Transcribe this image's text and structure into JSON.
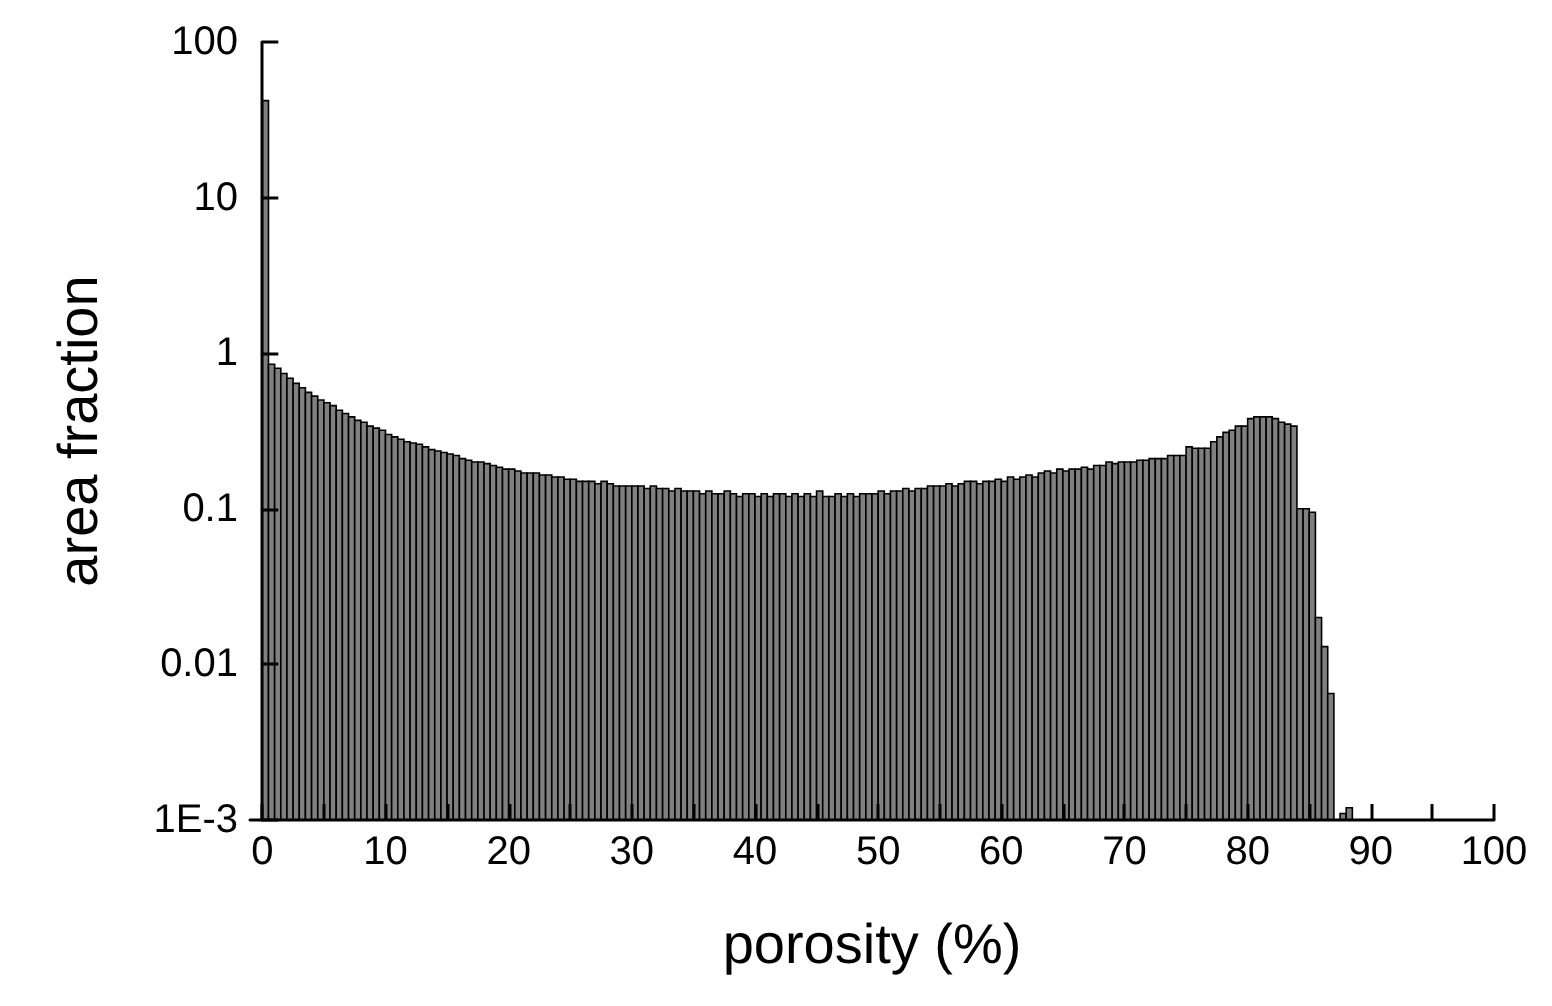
{
  "chart_data": {
    "type": "histogram",
    "xlabel": "porosity (%)",
    "ylabel": "area fraction",
    "log": "y",
    "grid": false,
    "color": "#808080",
    "bins": [
      0,
      0.5,
      1,
      1.5,
      2,
      2.5,
      3,
      3.5,
      4,
      4.5,
      5,
      5.5,
      6,
      6.5,
      7,
      7.5,
      8,
      8.5,
      9,
      9.5,
      10,
      10.5,
      11,
      11.5,
      12,
      12.5,
      13,
      13.5,
      14,
      14.5,
      15,
      15.5,
      16,
      16.5,
      17,
      17.5,
      18,
      18.5,
      19,
      19.5,
      20,
      20.5,
      21,
      21.5,
      22,
      22.5,
      23,
      23.5,
      24,
      24.5,
      25,
      25.5,
      26,
      26.5,
      27,
      27.5,
      28,
      28.5,
      29,
      29.5,
      30,
      30.5,
      31,
      31.5,
      32,
      32.5,
      33,
      33.5,
      34,
      34.5,
      35,
      35.5,
      36,
      36.5,
      37,
      37.5,
      38,
      38.5,
      39,
      39.5,
      40,
      40.5,
      41,
      41.5,
      42,
      42.5,
      43,
      43.5,
      44,
      44.5,
      45,
      45.5,
      46,
      46.5,
      47,
      47.5,
      48,
      48.5,
      49,
      49.5,
      50,
      50.5,
      51,
      51.5,
      52,
      52.5,
      53,
      53.5,
      54,
      54.5,
      55,
      55.5,
      56,
      56.5,
      57,
      57.5,
      58,
      58.5,
      59,
      59.5,
      60,
      60.5,
      61,
      61.5,
      62,
      62.5,
      63,
      63.5,
      64,
      64.5,
      65,
      65.5,
      66,
      66.5,
      67,
      67.5,
      68,
      68.5,
      69,
      69.5,
      70,
      70.5,
      71,
      71.5,
      72,
      72.5,
      73,
      73.5,
      74,
      74.5,
      75,
      75.5,
      76,
      76.5,
      77,
      77.5,
      78,
      78.5,
      79,
      79.5,
      80,
      80.5,
      81,
      81.5,
      82,
      82.5,
      83,
      83.5,
      84,
      84.5,
      85,
      85.5,
      86,
      86.5,
      87,
      87.5,
      88,
      88.5
    ],
    "values": [
      42,
      0.85,
      0.8,
      0.74,
      0.69,
      0.64,
      0.6,
      0.56,
      0.53,
      0.5,
      0.48,
      0.46,
      0.43,
      0.41,
      0.39,
      0.37,
      0.36,
      0.34,
      0.33,
      0.32,
      0.3,
      0.29,
      0.28,
      0.27,
      0.265,
      0.26,
      0.25,
      0.24,
      0.235,
      0.23,
      0.225,
      0.22,
      0.21,
      0.205,
      0.2,
      0.2,
      0.195,
      0.19,
      0.185,
      0.18,
      0.18,
      0.175,
      0.17,
      0.17,
      0.17,
      0.165,
      0.165,
      0.16,
      0.16,
      0.155,
      0.155,
      0.15,
      0.15,
      0.15,
      0.145,
      0.15,
      0.145,
      0.14,
      0.14,
      0.14,
      0.14,
      0.14,
      0.135,
      0.14,
      0.135,
      0.135,
      0.13,
      0.135,
      0.13,
      0.13,
      0.13,
      0.125,
      0.13,
      0.125,
      0.125,
      0.13,
      0.125,
      0.12,
      0.125,
      0.125,
      0.12,
      0.125,
      0.12,
      0.125,
      0.125,
      0.12,
      0.125,
      0.12,
      0.125,
      0.12,
      0.13,
      0.12,
      0.12,
      0.125,
      0.12,
      0.125,
      0.12,
      0.125,
      0.125,
      0.125,
      0.13,
      0.125,
      0.13,
      0.13,
      0.135,
      0.13,
      0.135,
      0.135,
      0.14,
      0.14,
      0.14,
      0.145,
      0.14,
      0.145,
      0.15,
      0.15,
      0.145,
      0.15,
      0.15,
      0.155,
      0.15,
      0.16,
      0.155,
      0.16,
      0.165,
      0.16,
      0.17,
      0.175,
      0.17,
      0.18,
      0.175,
      0.18,
      0.18,
      0.185,
      0.18,
      0.19,
      0.19,
      0.2,
      0.195,
      0.2,
      0.2,
      0.2,
      0.205,
      0.205,
      0.21,
      0.21,
      0.21,
      0.22,
      0.22,
      0.22,
      0.25,
      0.245,
      0.245,
      0.245,
      0.27,
      0.29,
      0.31,
      0.32,
      0.34,
      0.34,
      0.38,
      0.39,
      0.39,
      0.39,
      0.38,
      0.36,
      0.35,
      0.34,
      0.1,
      0.1,
      0.095,
      0.02,
      0.013,
      0.0065,
      null,
      0.0011,
      0.0012
    ],
    "xlim": [
      -1,
      100
    ],
    "xticks": [
      0,
      {
        "value": 5,
        "label": null
      },
      10,
      {
        "value": 15,
        "label": null
      },
      20,
      {
        "value": 25,
        "label": null
      },
      30,
      {
        "value": 35,
        "label": null
      },
      40,
      {
        "value": 45,
        "label": null
      },
      50,
      {
        "value": 55,
        "label": null
      },
      60,
      {
        "value": 65,
        "label": null
      },
      70,
      {
        "value": 75,
        "label": null
      },
      80,
      {
        "value": 85,
        "label": null
      },
      90,
      {
        "value": 95,
        "label": null
      },
      100
    ],
    "ylim": [
      0.001,
      100
    ],
    "yticks": [
      {
        "value": 0.001,
        "label": "1E-3"
      },
      0.01,
      0.1,
      1,
      10,
      100
    ]
  }
}
